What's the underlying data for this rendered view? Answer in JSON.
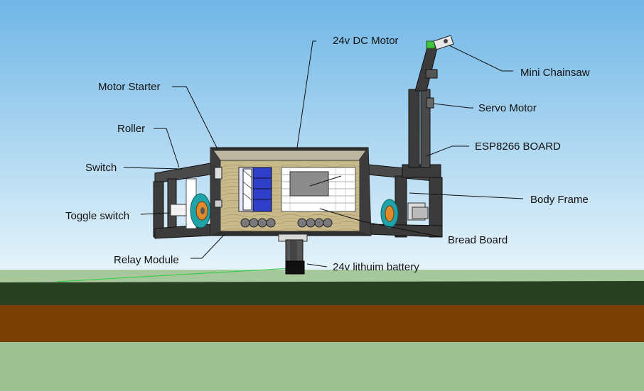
{
  "labels": {
    "dc_motor": "24v DC Motor",
    "mini_chainsaw": "Mini Chainsaw",
    "motor_starter": "Motor Starter",
    "servo_motor": "Servo Motor",
    "roller": "Roller",
    "esp8266_board": "ESP8266 BOARD",
    "switch": "Switch",
    "body_frame": "Body Frame",
    "toggle_switch": "Toggle switch",
    "bread_board": "Bread Board",
    "relay_module": "Relay Module",
    "battery": "24v lithuim battery"
  },
  "colors": {
    "sky_top": "#6fb6e6",
    "sky_bottom": "#e6f4fb",
    "ground_light": "#9dbf92",
    "grass": "#27401f",
    "soil": "#7a3f05",
    "frame": "#3b3b3b",
    "wood": "#c8b98b",
    "relay_blue": "#2f3fc8",
    "wheel_teal": "#1fa3a8",
    "wheel_orange": "#e08a2a",
    "grey_chip": "#8c8c8c",
    "chainsaw_green": "#3fc23f"
  }
}
